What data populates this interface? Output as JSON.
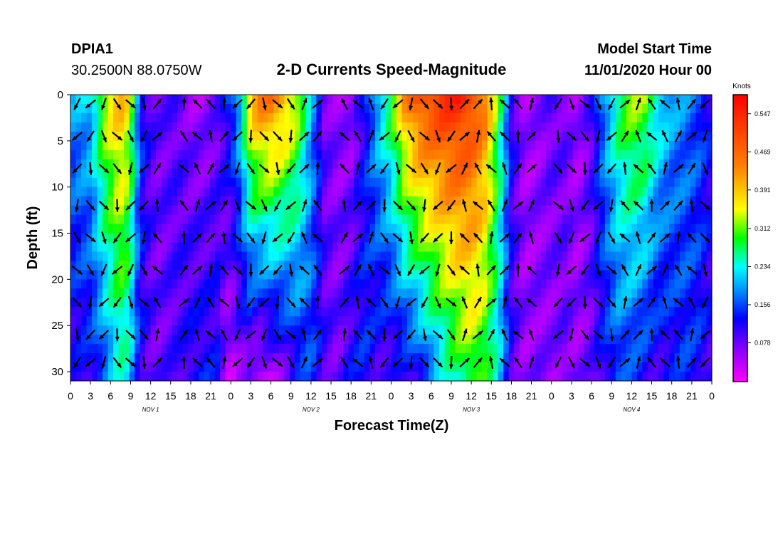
{
  "header": {
    "station": "DPIA1",
    "coords": "30.2500N 88.0750W",
    "title": "2-D Currents Speed-Magnitude",
    "model_label": "Model Start Time",
    "model_time": "11/01/2020 Hour 00"
  },
  "chart_data": {
    "type": "heatmap",
    "title": "2-D Currents Speed-Magnitude",
    "xlabel": "Forecast Time(Z)",
    "ylabel": "Depth (ft)",
    "x_range_hours": [
      0,
      96
    ],
    "ylim": [
      0,
      31
    ],
    "y_inverted": true,
    "x_tick_labels": [
      "0",
      "3",
      "6",
      "9",
      "12",
      "15",
      "18",
      "21",
      "0",
      "3",
      "6",
      "9",
      "12",
      "15",
      "18",
      "21",
      "0",
      "3",
      "6",
      "9",
      "12",
      "15",
      "18",
      "21",
      "0",
      "3",
      "6",
      "9",
      "12",
      "15",
      "18",
      "21",
      "0"
    ],
    "y_ticks": [
      0,
      5,
      10,
      15,
      20,
      25,
      30
    ],
    "y_tick_labels": [
      "0",
      "5",
      "10",
      "15",
      "20",
      "25",
      "30"
    ],
    "days": [
      {
        "label": "NOV  1",
        "center_hour": 12
      },
      {
        "label": "NOV  2",
        "center_hour": 36
      },
      {
        "label": "NOV  3",
        "center_hour": 60
      },
      {
        "label": "NOV  4",
        "center_hour": 84
      }
    ],
    "colorbar": {
      "unit": "Knots",
      "min": 0.0,
      "max": 0.586,
      "ticks": [
        0.078,
        0.156,
        0.234,
        0.312,
        0.391,
        0.469,
        0.547
      ],
      "tick_labels": [
        "0.078",
        "0.156",
        "0.234",
        "0.312",
        "0.391",
        "0.469",
        "0.547"
      ],
      "colors": [
        "#ff00ff",
        "#8000ff",
        "#0000ff",
        "#00a0ff",
        "#00ffff",
        "#00ff00",
        "#ffff00",
        "#ff8000",
        "#ff0000"
      ]
    },
    "speed_profile": {
      "description": "approximate speed (knots) vs forecast hour at surface (0 ft) and bottom (30 ft)",
      "hours": [
        0,
        3,
        5,
        7,
        8,
        9,
        10,
        11,
        13,
        16,
        18,
        20,
        22,
        23,
        24,
        25,
        27,
        28,
        30,
        32,
        34,
        36,
        38,
        40,
        42,
        44,
        46,
        48,
        50,
        52,
        54,
        56,
        58,
        60,
        62,
        64,
        66,
        68,
        70,
        72,
        74,
        76,
        78,
        80,
        82,
        84,
        86,
        88,
        90,
        92,
        94,
        96
      ],
      "surface": [
        0.19,
        0.22,
        0.34,
        0.4,
        0.4,
        0.33,
        0.2,
        0.12,
        0.08,
        0.09,
        0.06,
        0.05,
        0.08,
        0.12,
        0.16,
        0.2,
        0.4,
        0.45,
        0.46,
        0.42,
        0.34,
        0.2,
        0.08,
        0.06,
        0.05,
        0.12,
        0.22,
        0.3,
        0.43,
        0.5,
        0.52,
        0.54,
        0.55,
        0.52,
        0.45,
        0.3,
        0.12,
        0.05,
        0.06,
        0.09,
        0.08,
        0.05,
        0.1,
        0.2,
        0.28,
        0.33,
        0.32,
        0.25,
        0.2,
        0.18,
        0.16,
        0.12
      ],
      "bottom": [
        0.1,
        0.12,
        0.16,
        0.22,
        0.24,
        0.2,
        0.14,
        0.1,
        0.08,
        0.1,
        0.12,
        0.13,
        0.12,
        0.06,
        0.03,
        0.06,
        0.06,
        0.02,
        0.04,
        0.07,
        0.12,
        0.15,
        0.1,
        0.08,
        0.12,
        0.14,
        0.1,
        0.09,
        0.1,
        0.12,
        0.17,
        0.22,
        0.26,
        0.3,
        0.28,
        0.22,
        0.1,
        0.06,
        0.07,
        0.06,
        0.08,
        0.06,
        0.08,
        0.12,
        0.15,
        0.14,
        0.12,
        0.1,
        0.12,
        0.14,
        0.13,
        0.1
      ]
    },
    "vectors": {
      "description": "current direction arrows on a grid: hours step 1.5 h offset, depths in ft",
      "depths": [
        1,
        4.5,
        8,
        12,
        15.5,
        19,
        22.5,
        26,
        29
      ],
      "hours": [
        1,
        3,
        5,
        7,
        9,
        11,
        13,
        17,
        19,
        21,
        23,
        25,
        27,
        29,
        31,
        33,
        35,
        37,
        41,
        43,
        45,
        47,
        49,
        51,
        53,
        55,
        57,
        59,
        61,
        63,
        65,
        67,
        69,
        73,
        75,
        77,
        79,
        81,
        83,
        85,
        87,
        89,
        91,
        93,
        95
      ]
    }
  }
}
